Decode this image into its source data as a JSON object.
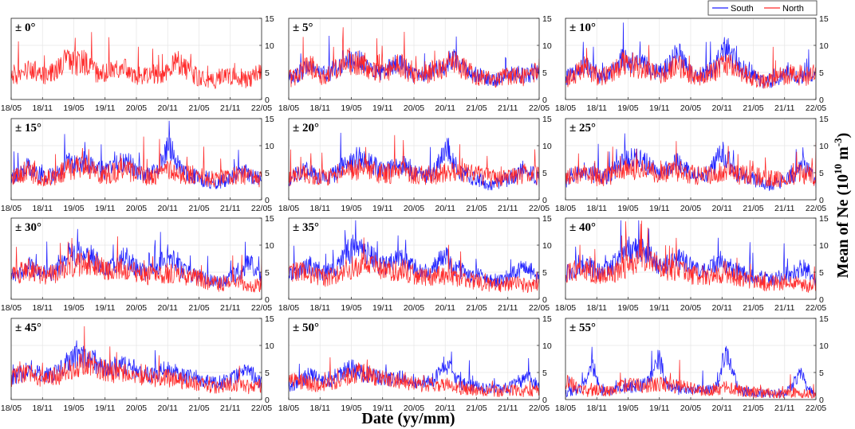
{
  "chart_data": {
    "type": "line",
    "layout": "small-multiples 4x3",
    "x_axis": {
      "label": "Date (yy/mm)",
      "ticks": [
        "18/05",
        "18/11",
        "19/05",
        "19/11",
        "20/05",
        "20/11",
        "21/05",
        "21/11",
        "22/05"
      ]
    },
    "y_axis": {
      "label_main": "Mean of Ne (10",
      "label_exp1": "10",
      "label_mid": " m",
      "label_exp2": "-3",
      "label_end": ")",
      "ylim": [
        0,
        15
      ],
      "ticks": [
        "0",
        "5",
        "10",
        "15"
      ]
    },
    "legend": {
      "position": "top-right",
      "entries": [
        {
          "name": "South",
          "color": "#1f1fff"
        },
        {
          "name": "North",
          "color": "#ff2a2a"
        }
      ]
    },
    "series_colors": {
      "South": "#1f1fff",
      "North": "#ff2a2a"
    },
    "time_axis_months": [
      0,
      6,
      12,
      18,
      24,
      30,
      36,
      42,
      48
    ],
    "panels": [
      {
        "title": "± 0°",
        "south": [
          5.2,
          4.5,
          4.6,
          5.2,
          6.0,
          5.0,
          4.6,
          4.5,
          5.0,
          5.8,
          6.8,
          8.0,
          7.0,
          6.8,
          7.2,
          6.0,
          5.4,
          5.0,
          5.0,
          5.4,
          6.4,
          6.0,
          5.6,
          5.0,
          4.6,
          4.4,
          4.6,
          5.0,
          4.8,
          4.6,
          5.5,
          7.0,
          7.2,
          6.0,
          5.5,
          4.8,
          4.2,
          3.8,
          3.5,
          3.6,
          4.0,
          4.2,
          4.4,
          4.5,
          4.2,
          3.8,
          4.0,
          4.6,
          5.0
        ],
        "north": [
          5.0,
          4.4,
          4.5,
          5.0,
          5.8,
          5.0,
          4.5,
          4.4,
          4.9,
          5.6,
          6.5,
          7.8,
          6.8,
          6.6,
          7.0,
          5.8,
          5.2,
          4.9,
          4.8,
          5.2,
          6.2,
          5.8,
          5.5,
          4.9,
          4.5,
          4.3,
          4.5,
          4.9,
          4.7,
          4.5,
          5.4,
          6.8,
          7.0,
          5.9,
          5.3,
          4.7,
          4.1,
          3.7,
          3.4,
          3.5,
          3.9,
          4.1,
          4.3,
          4.4,
          4.1,
          3.7,
          3.9,
          4.5,
          4.9
        ]
      },
      {
        "title": "± 5°",
        "south": [
          4.0,
          4.2,
          4.8,
          6.0,
          6.5,
          5.2,
          4.6,
          4.6,
          5.0,
          5.6,
          6.2,
          8.5,
          7.0,
          6.8,
          7.2,
          6.2,
          5.4,
          5.2,
          5.0,
          5.6,
          6.2,
          6.6,
          6.4,
          5.2,
          4.6,
          4.4,
          4.6,
          5.2,
          5.6,
          5.8,
          6.2,
          7.5,
          7.4,
          6.2,
          5.6,
          5.0,
          4.6,
          4.2,
          3.8,
          3.6,
          3.8,
          4.2,
          4.4,
          4.6,
          4.8,
          4.2,
          4.4,
          5.0,
          5.2
        ],
        "north": [
          3.8,
          4.1,
          4.6,
          5.8,
          6.3,
          5.0,
          4.5,
          4.4,
          4.9,
          5.4,
          6.0,
          8.2,
          6.8,
          6.6,
          7.0,
          6.0,
          5.2,
          5.0,
          4.9,
          5.4,
          6.0,
          6.4,
          6.2,
          5.0,
          4.5,
          4.3,
          4.5,
          5.0,
          5.4,
          5.6,
          6.0,
          7.2,
          7.2,
          6.0,
          5.4,
          4.8,
          4.4,
          4.0,
          3.7,
          3.5,
          3.7,
          4.0,
          4.3,
          4.5,
          4.6,
          4.1,
          4.3,
          4.9,
          5.1
        ]
      },
      {
        "title": "± 10°",
        "south": [
          4.0,
          4.4,
          5.0,
          6.0,
          6.2,
          5.0,
          4.6,
          4.4,
          4.6,
          5.2,
          6.2,
          8.0,
          6.6,
          6.8,
          7.0,
          6.4,
          5.8,
          5.2,
          5.0,
          5.6,
          6.6,
          8.0,
          8.2,
          6.2,
          5.0,
          4.6,
          4.4,
          4.8,
          5.4,
          6.6,
          8.8,
          9.4,
          8.0,
          6.2,
          5.6,
          5.0,
          4.4,
          3.8,
          3.4,
          3.2,
          3.6,
          4.2,
          4.6,
          5.0,
          4.6,
          4.0,
          4.2,
          4.6,
          4.8
        ],
        "north": [
          3.8,
          4.2,
          4.8,
          5.8,
          6.0,
          4.8,
          4.4,
          4.2,
          4.5,
          5.0,
          5.8,
          7.2,
          6.0,
          6.0,
          6.0,
          5.6,
          5.0,
          4.8,
          4.6,
          5.0,
          5.6,
          6.2,
          6.0,
          5.2,
          4.6,
          4.4,
          4.3,
          4.6,
          5.0,
          5.4,
          6.2,
          6.6,
          6.0,
          5.2,
          4.8,
          4.4,
          4.0,
          3.6,
          3.4,
          3.4,
          3.8,
          4.2,
          4.4,
          4.6,
          4.4,
          4.0,
          4.2,
          4.6,
          4.8
        ]
      },
      {
        "title": "± 15°",
        "south": [
          3.6,
          4.4,
          5.2,
          6.0,
          5.6,
          4.8,
          4.4,
          4.2,
          4.4,
          4.8,
          5.6,
          7.2,
          6.4,
          6.6,
          7.0,
          6.8,
          6.2,
          5.4,
          5.2,
          5.6,
          6.4,
          7.0,
          7.2,
          6.4,
          5.4,
          4.8,
          4.6,
          4.8,
          5.6,
          7.8,
          9.6,
          9.0,
          6.4,
          5.2,
          4.8,
          4.4,
          4.0,
          3.6,
          3.2,
          3.0,
          3.2,
          3.6,
          4.0,
          4.6,
          5.0,
          5.2,
          4.4,
          4.0,
          3.8
        ],
        "north": [
          3.6,
          4.2,
          4.8,
          5.4,
          5.0,
          4.4,
          4.2,
          4.0,
          4.2,
          4.6,
          5.2,
          5.8,
          5.6,
          5.8,
          6.0,
          5.8,
          5.4,
          4.8,
          4.6,
          4.8,
          5.2,
          5.6,
          5.6,
          5.2,
          4.8,
          4.6,
          4.4,
          4.4,
          4.6,
          5.0,
          5.4,
          5.4,
          5.0,
          4.6,
          4.6,
          4.6,
          4.4,
          4.2,
          4.0,
          3.8,
          3.8,
          4.0,
          4.2,
          4.4,
          4.6,
          4.6,
          4.2,
          4.0,
          4.0
        ]
      },
      {
        "title": "± 20°",
        "south": [
          3.4,
          4.4,
          5.0,
          5.4,
          5.2,
          4.6,
          4.2,
          4.0,
          4.2,
          4.8,
          5.8,
          7.0,
          6.6,
          6.8,
          7.2,
          7.2,
          6.6,
          5.8,
          5.4,
          5.4,
          5.8,
          6.2,
          6.6,
          6.0,
          5.2,
          4.6,
          4.4,
          4.6,
          5.4,
          7.4,
          9.4,
          8.8,
          6.2,
          5.0,
          4.6,
          4.2,
          3.8,
          3.4,
          3.0,
          2.8,
          3.0,
          3.4,
          3.8,
          4.4,
          4.8,
          5.6,
          5.8,
          4.4,
          3.6
        ],
        "north": [
          3.6,
          4.2,
          4.8,
          5.0,
          4.8,
          4.4,
          4.2,
          4.0,
          4.2,
          4.6,
          5.0,
          5.6,
          5.4,
          5.6,
          5.8,
          5.8,
          5.6,
          5.0,
          4.8,
          4.8,
          5.0,
          5.2,
          5.2,
          5.0,
          4.8,
          4.6,
          4.6,
          4.6,
          4.6,
          4.8,
          5.2,
          5.4,
          5.2,
          5.0,
          5.0,
          4.8,
          4.6,
          4.4,
          4.2,
          4.0,
          3.8,
          3.8,
          4.0,
          4.2,
          4.6,
          4.8,
          4.8,
          4.6,
          4.4
        ]
      },
      {
        "title": "± 25°",
        "south": [
          3.4,
          4.4,
          5.0,
          5.4,
          5.2,
          4.8,
          4.4,
          4.2,
          4.4,
          5.0,
          6.0,
          7.2,
          7.6,
          7.4,
          7.4,
          7.2,
          6.4,
          5.8,
          5.4,
          5.6,
          6.0,
          6.6,
          6.8,
          6.0,
          5.2,
          4.6,
          4.4,
          4.8,
          5.6,
          7.4,
          8.6,
          7.6,
          5.8,
          4.8,
          4.4,
          4.0,
          3.8,
          3.4,
          3.0,
          2.8,
          3.0,
          3.4,
          3.8,
          4.2,
          4.8,
          6.0,
          6.4,
          4.8,
          3.6
        ],
        "north": [
          3.6,
          4.2,
          4.6,
          4.8,
          4.8,
          4.4,
          4.2,
          4.0,
          4.2,
          4.6,
          5.0,
          5.6,
          5.6,
          5.6,
          5.8,
          5.8,
          5.4,
          5.0,
          4.8,
          4.8,
          5.0,
          5.2,
          5.2,
          5.0,
          4.8,
          4.6,
          4.4,
          4.4,
          4.6,
          4.8,
          5.0,
          5.0,
          4.8,
          4.6,
          4.6,
          4.6,
          4.4,
          4.2,
          4.0,
          3.8,
          3.8,
          3.8,
          4.0,
          4.2,
          4.4,
          4.6,
          4.6,
          4.4,
          4.2
        ]
      },
      {
        "title": "± 30°",
        "south": [
          4.0,
          4.8,
          5.4,
          5.8,
          5.8,
          5.4,
          5.0,
          4.8,
          5.0,
          5.8,
          7.0,
          8.2,
          8.6,
          8.4,
          8.6,
          8.2,
          7.2,
          6.4,
          6.0,
          6.0,
          6.4,
          7.2,
          7.6,
          6.8,
          5.8,
          5.2,
          5.0,
          5.2,
          6.0,
          7.6,
          8.2,
          7.4,
          6.0,
          5.2,
          4.8,
          4.4,
          4.2,
          3.8,
          3.4,
          3.2,
          3.2,
          3.6,
          4.0,
          4.4,
          5.0,
          6.4,
          6.8,
          5.0,
          3.6
        ],
        "north": [
          4.0,
          4.6,
          5.0,
          5.2,
          5.2,
          4.8,
          4.6,
          4.4,
          4.6,
          5.0,
          5.4,
          6.0,
          6.2,
          6.4,
          6.6,
          6.8,
          6.4,
          5.8,
          5.4,
          5.4,
          5.4,
          5.6,
          5.6,
          5.2,
          4.8,
          4.6,
          4.4,
          4.4,
          4.4,
          4.6,
          4.8,
          4.8,
          4.6,
          4.4,
          4.2,
          4.0,
          3.8,
          3.4,
          3.0,
          2.8,
          2.8,
          3.0,
          3.2,
          3.2,
          3.0,
          2.8,
          2.6,
          2.6,
          2.8
        ]
      },
      {
        "title": "± 35°",
        "south": [
          4.2,
          5.0,
          5.6,
          6.2,
          6.2,
          5.6,
          5.2,
          5.0,
          5.2,
          6.0,
          7.2,
          8.6,
          9.0,
          8.8,
          9.0,
          8.8,
          7.8,
          6.8,
          6.2,
          6.2,
          6.6,
          7.4,
          7.6,
          6.8,
          6.0,
          5.4,
          5.2,
          5.4,
          6.0,
          7.4,
          7.8,
          7.0,
          6.0,
          5.4,
          5.0,
          4.6,
          4.4,
          4.0,
          3.6,
          3.4,
          3.4,
          3.8,
          4.2,
          4.6,
          5.0,
          5.8,
          6.0,
          4.6,
          3.6
        ],
        "north": [
          4.2,
          4.8,
          5.2,
          5.2,
          5.0,
          4.6,
          4.2,
          4.0,
          4.2,
          4.6,
          5.0,
          5.6,
          5.8,
          6.0,
          6.4,
          6.8,
          6.6,
          6.0,
          5.4,
          5.2,
          5.2,
          5.4,
          5.4,
          5.0,
          4.6,
          4.2,
          4.0,
          4.0,
          4.2,
          4.4,
          4.4,
          4.2,
          4.0,
          3.8,
          3.6,
          3.4,
          3.2,
          3.0,
          2.8,
          2.6,
          2.6,
          2.8,
          3.0,
          3.0,
          2.8,
          2.6,
          2.4,
          2.4,
          2.6
        ]
      },
      {
        "title": "± 40°",
        "south": [
          4.6,
          5.2,
          5.8,
          6.4,
          6.2,
          5.6,
          5.2,
          5.2,
          5.6,
          6.4,
          7.6,
          8.8,
          9.2,
          9.2,
          9.4,
          9.2,
          8.4,
          7.2,
          6.4,
          6.2,
          6.6,
          7.4,
          7.6,
          6.8,
          6.0,
          5.6,
          5.4,
          5.4,
          5.8,
          6.8,
          7.0,
          6.4,
          5.6,
          5.2,
          4.8,
          4.6,
          4.4,
          4.0,
          3.8,
          3.6,
          3.6,
          4.0,
          4.4,
          4.8,
          5.2,
          5.8,
          5.6,
          4.4,
          3.6
        ],
        "north": [
          4.4,
          5.0,
          5.4,
          5.4,
          5.2,
          4.8,
          4.4,
          4.2,
          4.4,
          4.8,
          5.2,
          5.8,
          6.2,
          6.6,
          7.2,
          7.8,
          7.4,
          6.6,
          6.0,
          5.6,
          5.4,
          5.4,
          5.4,
          5.0,
          4.6,
          4.4,
          4.2,
          4.2,
          4.4,
          4.6,
          4.6,
          4.4,
          4.2,
          4.0,
          3.8,
          3.6,
          3.4,
          3.2,
          3.0,
          2.8,
          2.8,
          3.0,
          3.2,
          3.2,
          3.0,
          2.8,
          2.6,
          2.6,
          2.8
        ]
      },
      {
        "title": "± 45°",
        "south": [
          4.0,
          4.4,
          4.8,
          5.4,
          5.6,
          5.0,
          4.6,
          4.4,
          4.6,
          5.2,
          6.2,
          7.2,
          7.8,
          7.8,
          7.8,
          7.4,
          6.8,
          6.2,
          5.8,
          5.6,
          5.8,
          6.2,
          6.4,
          5.8,
          5.2,
          4.8,
          4.6,
          4.6,
          4.8,
          5.4,
          5.6,
          5.2,
          4.8,
          4.4,
          4.2,
          4.0,
          3.8,
          3.6,
          3.4,
          3.2,
          3.2,
          3.4,
          3.8,
          4.2,
          4.6,
          5.2,
          5.0,
          3.8,
          3.2
        ],
        "north": [
          4.0,
          4.4,
          4.6,
          4.6,
          4.6,
          4.2,
          4.0,
          3.8,
          4.0,
          4.4,
          4.8,
          5.4,
          5.8,
          6.2,
          6.6,
          6.8,
          6.4,
          5.8,
          5.4,
          5.0,
          4.8,
          4.8,
          4.8,
          4.4,
          4.2,
          4.0,
          3.8,
          3.8,
          4.0,
          4.0,
          4.0,
          3.8,
          3.6,
          3.4,
          3.2,
          3.0,
          2.8,
          2.6,
          2.4,
          2.4,
          2.4,
          2.6,
          2.8,
          2.8,
          2.6,
          2.4,
          2.2,
          2.4,
          2.6
        ]
      },
      {
        "title": "± 50°",
        "south": [
          2.4,
          2.8,
          3.4,
          4.0,
          4.6,
          4.2,
          3.6,
          3.4,
          3.6,
          4.0,
          4.8,
          5.8,
          6.0,
          5.2,
          4.8,
          4.6,
          4.4,
          4.2,
          4.0,
          3.8,
          3.8,
          4.0,
          4.2,
          3.8,
          3.4,
          3.2,
          3.2,
          3.4,
          3.8,
          5.2,
          6.8,
          5.6,
          3.8,
          3.0,
          2.8,
          2.6,
          2.4,
          2.2,
          2.0,
          1.8,
          1.8,
          2.0,
          2.2,
          2.6,
          3.0,
          3.6,
          4.2,
          3.2,
          2.4
        ],
        "north": [
          3.2,
          3.4,
          3.4,
          3.2,
          3.0,
          2.8,
          2.8,
          2.8,
          3.0,
          3.2,
          3.6,
          4.2,
          4.6,
          4.8,
          4.8,
          4.6,
          4.4,
          4.0,
          3.8,
          3.6,
          3.4,
          3.4,
          3.4,
          3.2,
          3.0,
          2.8,
          2.8,
          2.8,
          2.8,
          2.8,
          2.8,
          2.6,
          2.4,
          2.2,
          2.0,
          1.8,
          1.6,
          1.6,
          1.6,
          1.6,
          1.6,
          1.8,
          1.8,
          1.8,
          1.6,
          1.6,
          1.6,
          1.8,
          2.0
        ]
      },
      {
        "title": "± 55°",
        "south": [
          1.4,
          1.6,
          1.8,
          2.0,
          3.8,
          6.4,
          3.6,
          1.6,
          1.4,
          1.6,
          2.0,
          2.2,
          2.2,
          2.4,
          2.6,
          2.8,
          3.6,
          6.4,
          7.6,
          4.0,
          2.0,
          1.8,
          1.8,
          1.8,
          1.8,
          1.8,
          1.8,
          1.8,
          1.8,
          2.6,
          6.2,
          8.6,
          5.4,
          2.2,
          1.6,
          1.4,
          1.4,
          1.4,
          1.2,
          1.0,
          1.0,
          1.2,
          1.4,
          1.8,
          3.6,
          4.6,
          3.0,
          1.6,
          1.2
        ],
        "north": [
          3.2,
          3.0,
          2.2,
          1.6,
          1.6,
          1.8,
          1.8,
          1.6,
          1.6,
          1.6,
          2.0,
          2.4,
          2.6,
          2.6,
          2.6,
          2.6,
          2.6,
          2.8,
          3.0,
          2.8,
          2.6,
          2.4,
          2.4,
          2.2,
          2.0,
          2.0,
          1.8,
          1.8,
          1.8,
          2.0,
          2.2,
          2.2,
          2.0,
          1.8,
          1.6,
          1.4,
          1.4,
          1.2,
          1.2,
          1.0,
          1.0,
          1.0,
          1.2,
          1.2,
          1.2,
          1.0,
          1.0,
          1.0,
          1.2
        ]
      }
    ]
  }
}
